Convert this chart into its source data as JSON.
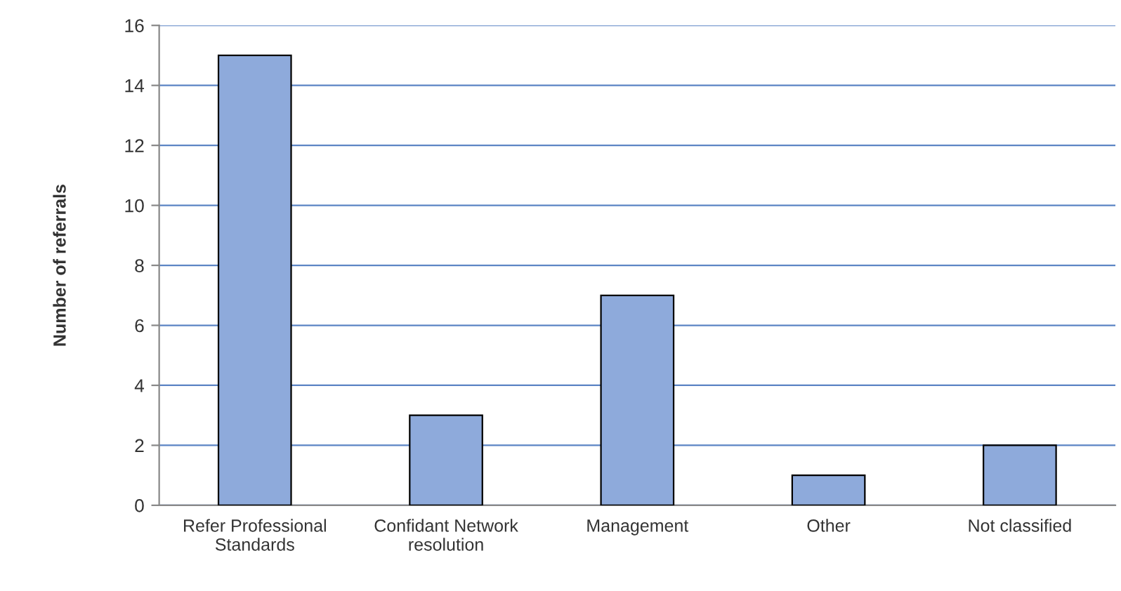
{
  "chart_data": {
    "type": "bar",
    "ylabel": "Number of referrals",
    "categories": [
      "Refer Professional\nStandards",
      "Confidant Network\nresolution",
      "Management",
      "Other",
      "Not classified"
    ],
    "values": [
      15,
      3,
      7,
      1,
      2
    ],
    "color": "#8eaadb",
    "ylim": [
      0,
      16
    ],
    "yticks": [
      0,
      2,
      4,
      6,
      8,
      10,
      12,
      14,
      16
    ],
    "grid": "y"
  }
}
